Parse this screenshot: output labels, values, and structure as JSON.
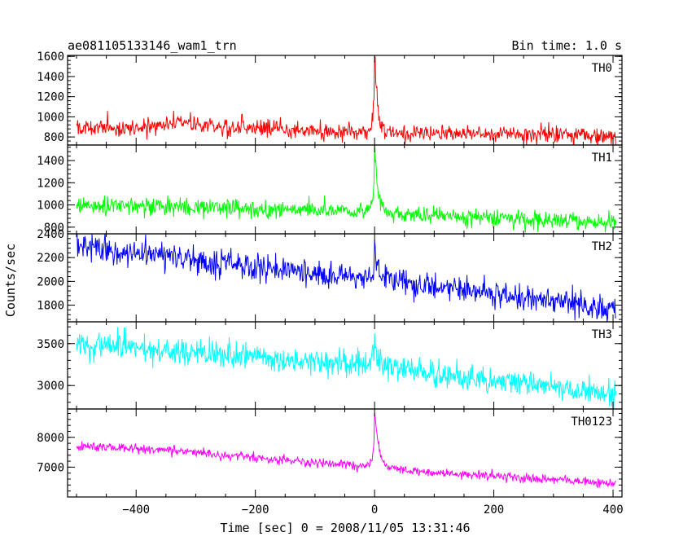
{
  "chart_data": {
    "type": "line",
    "title": "ae081105133146_wam1_trn",
    "subtitle": "Bin time: 1.0 s",
    "xlabel": "Time [sec] 0 = 2008/11/05 13:31:46",
    "ylabel": "Counts/sec",
    "xlim": [
      -515,
      415
    ],
    "x_ticks": [
      -400,
      -200,
      0,
      200,
      400
    ],
    "x_tick_labels": [
      "−400",
      "−200",
      "0",
      "200",
      "400"
    ],
    "grid": false,
    "panels": [
      {
        "name": "TH0",
        "color": "#ff0000",
        "ylim": [
          720,
          1610
        ],
        "ticks": [
          800,
          1000,
          1200,
          1400,
          1600
        ],
        "tick_labels": [
          "800",
          "1000",
          "1200",
          "1400",
          "1600"
        ],
        "trend": [
          [
            -500,
            900
          ],
          [
            -400,
            890
          ],
          [
            -330,
            940
          ],
          [
            -250,
            895
          ],
          [
            -100,
            860
          ],
          [
            -10,
            850
          ],
          [
            50,
            840
          ],
          [
            200,
            830
          ],
          [
            400,
            800
          ]
        ],
        "noise": 45,
        "flare": {
          "t0": 0,
          "peak": 1620,
          "rise": 3,
          "decay": 5
        }
      },
      {
        "name": "TH1",
        "color": "#00ff00",
        "ylim": [
          740,
          1540
        ],
        "ticks": [
          800,
          1000,
          1200,
          1400
        ],
        "tick_labels": [
          "800",
          "1000",
          "1200",
          "1400"
        ],
        "trend": [
          [
            -500,
            1000
          ],
          [
            -300,
            980
          ],
          [
            -100,
            950
          ],
          [
            0,
            930
          ],
          [
            200,
            880
          ],
          [
            400,
            840
          ]
        ],
        "noise": 40,
        "flare": {
          "t0": 0,
          "peak": 1520,
          "rise": 3,
          "decay": 6
        }
      },
      {
        "name": "TH2",
        "color": "#0000ff",
        "ylim": [
          1660,
          2400
        ],
        "ticks": [
          1800,
          2000,
          2200,
          2400
        ],
        "tick_labels": [
          "1800",
          "2000",
          "2200",
          "2400"
        ],
        "trend": [
          [
            -500,
            2290
          ],
          [
            -300,
            2180
          ],
          [
            -100,
            2060
          ],
          [
            0,
            2020
          ],
          [
            200,
            1900
          ],
          [
            400,
            1760
          ]
        ],
        "noise": 55,
        "flare": {
          "t0": 0,
          "peak": 2280,
          "rise": 3,
          "decay": 8
        }
      },
      {
        "name": "TH3",
        "color": "#00ffff",
        "ylim": [
          2720,
          3760
        ],
        "ticks": [
          3000,
          3500
        ],
        "tick_labels": [
          "3000",
          "3500"
        ],
        "trend": [
          [
            -500,
            3500
          ],
          [
            -300,
            3400
          ],
          [
            -100,
            3280
          ],
          [
            0,
            3250
          ],
          [
            200,
            3060
          ],
          [
            400,
            2900
          ]
        ],
        "noise": 75,
        "flare": {
          "t0": 0,
          "peak": 3520,
          "rise": 3,
          "decay": 6
        }
      },
      {
        "name": "TH0123",
        "color": "#ff00ff",
        "ylim": [
          6000,
          8950
        ],
        "ticks": [
          7000,
          8000
        ],
        "tick_labels": [
          "7000",
          "8000"
        ],
        "trend": [
          [
            -500,
            7700
          ],
          [
            -400,
            7620
          ],
          [
            -300,
            7500
          ],
          [
            -100,
            7150
          ],
          [
            -10,
            7050
          ],
          [
            50,
            6900
          ],
          [
            200,
            6700
          ],
          [
            400,
            6450
          ]
        ],
        "noise": 75,
        "flare": {
          "t0": 0,
          "peak": 8900,
          "rise": 3,
          "decay": 7
        }
      }
    ]
  }
}
